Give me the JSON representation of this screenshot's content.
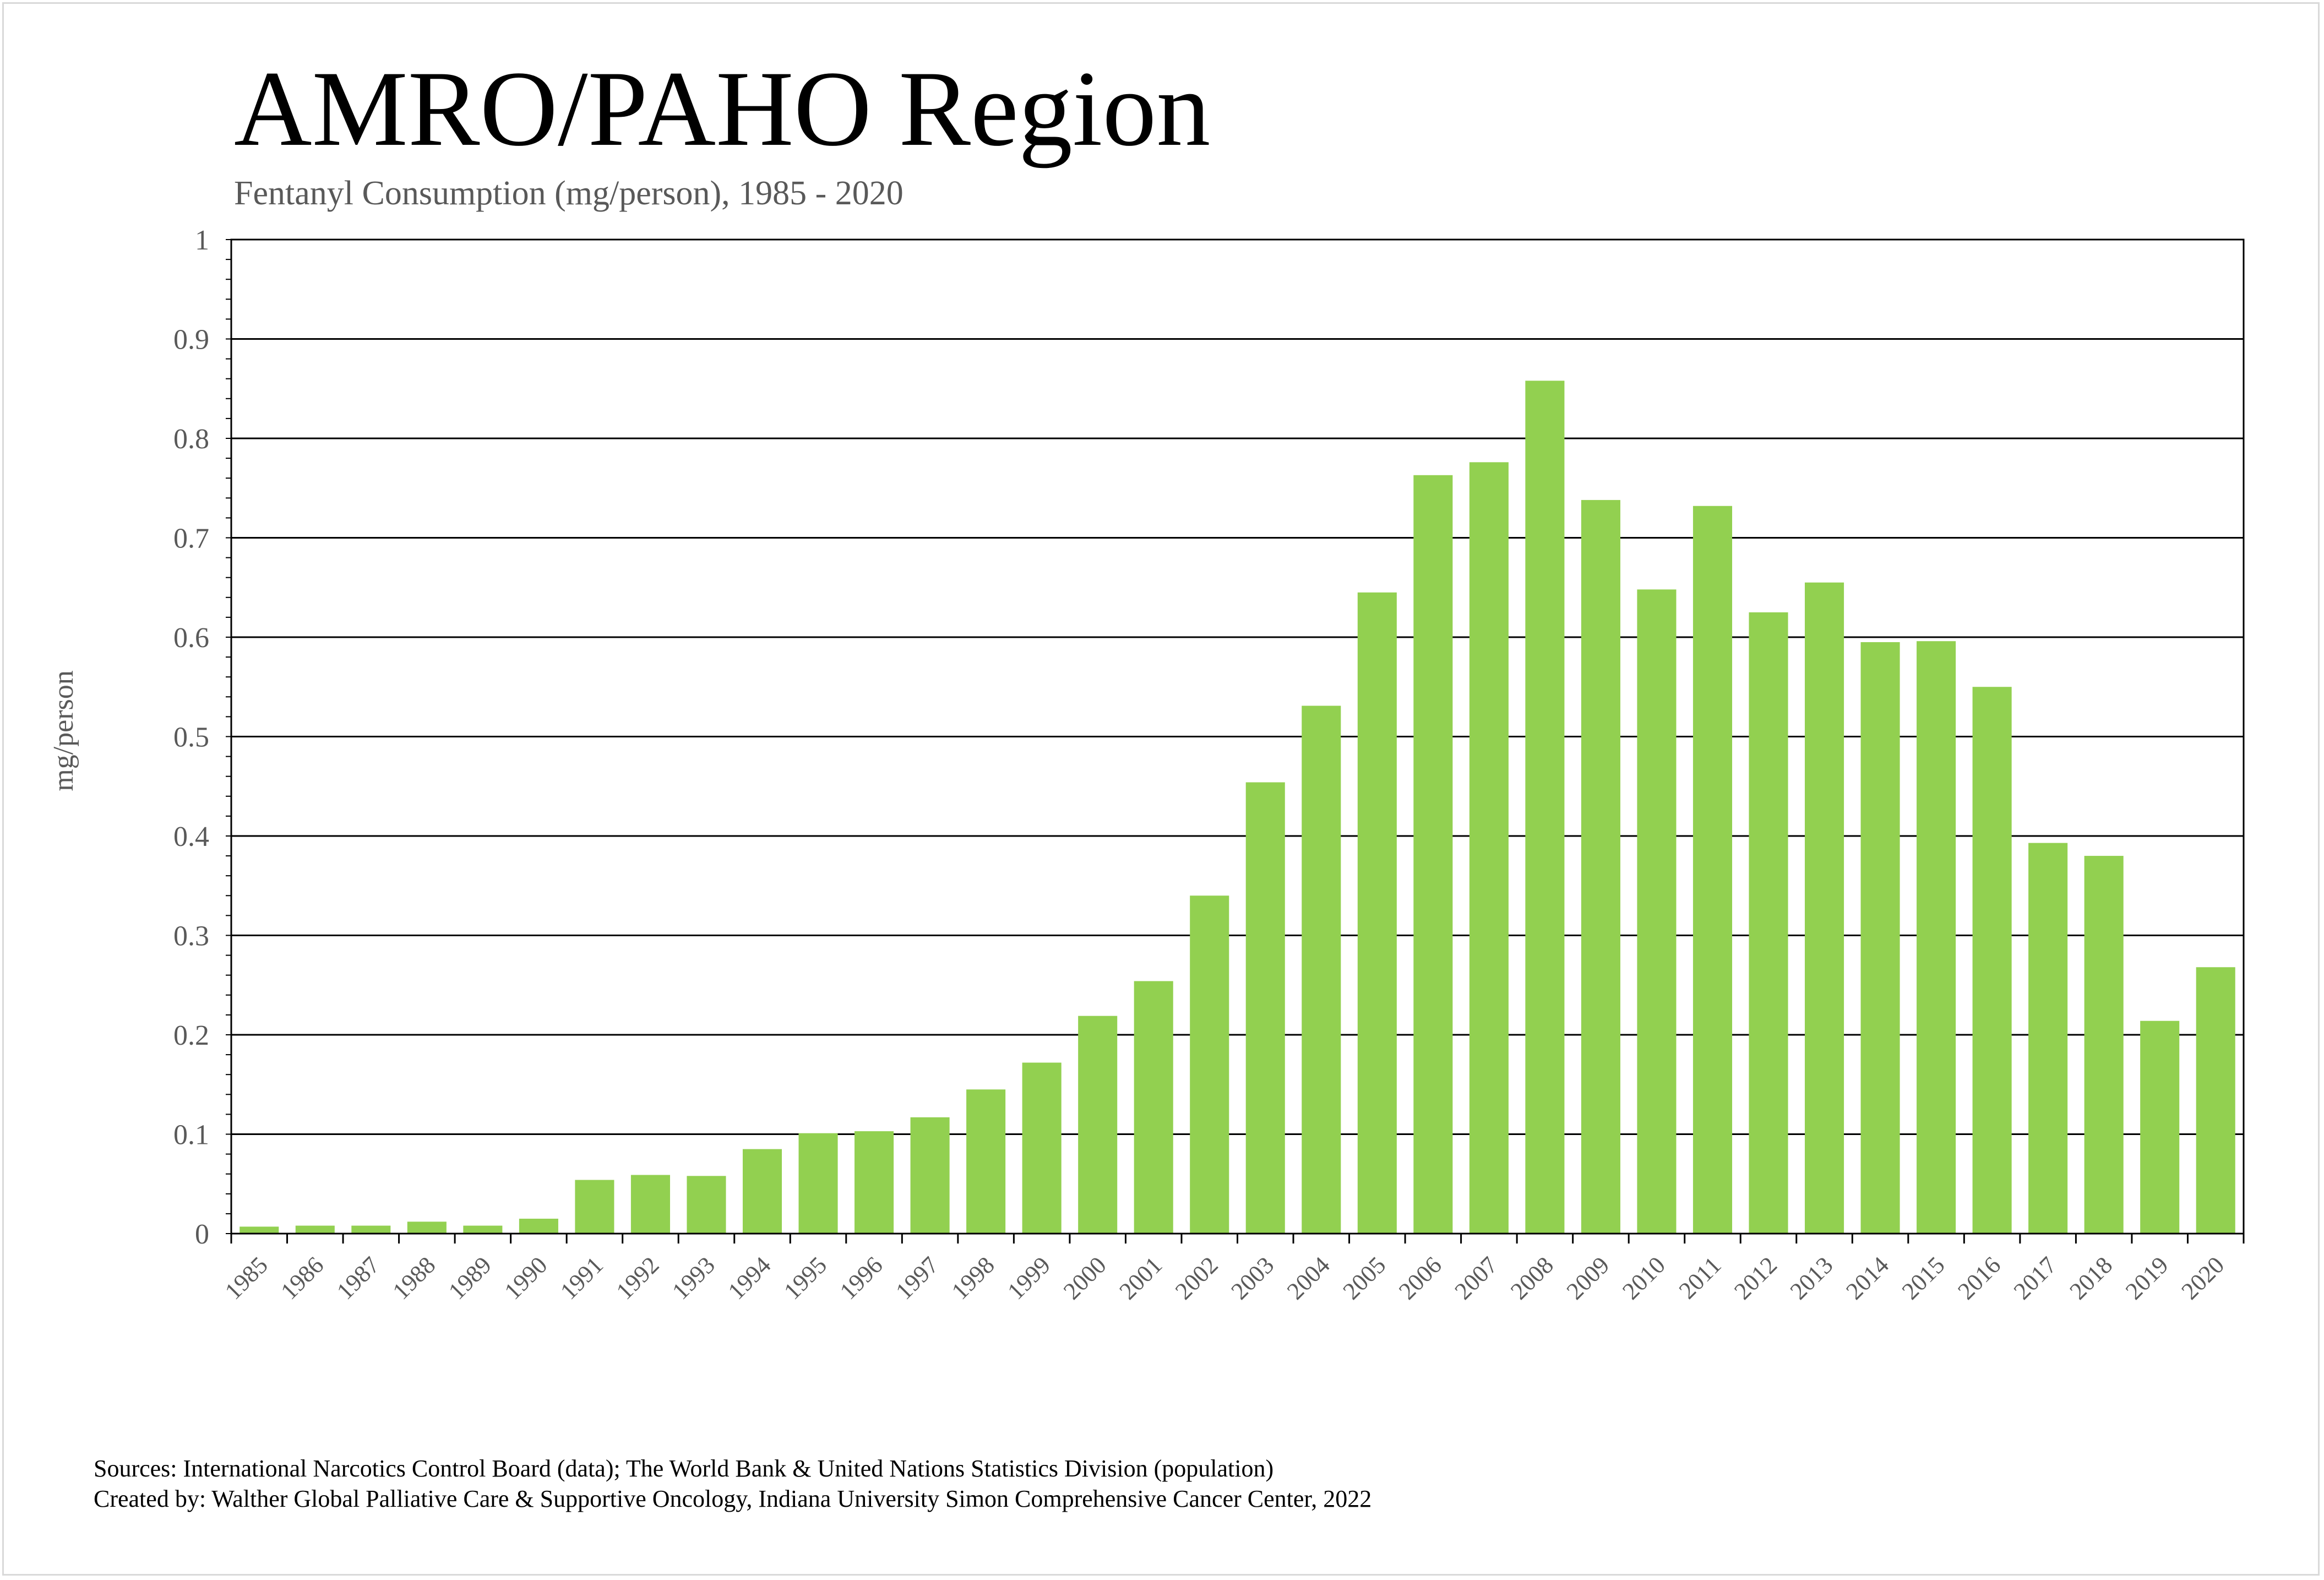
{
  "title": "AMRO/PAHO Region",
  "subtitle": "Fentanyl Consumption (mg/person), 1985 - 2020",
  "footer": {
    "sources": "Sources: International Narcotics Control Board (data); The World Bank & United Nations Statistics Division (population)",
    "created_by": "Created by: Walther Global Palliative Care & Supportive Oncology, Indiana University Simon Comprehensive Cancer Center, 2022"
  },
  "colors": {
    "bar": "#92d050",
    "gridline": "#000000",
    "text": "#595959"
  },
  "chart_data": {
    "type": "bar",
    "title": "AMRO/PAHO Region",
    "subtitle": "Fentanyl Consumption (mg/person), 1985 - 2020",
    "xlabel": "",
    "ylabel": "mg/person",
    "ylim": [
      0,
      1
    ],
    "yticks": [
      "0",
      "0.1",
      "0.2",
      "0.3",
      "0.4",
      "0.5",
      "0.6",
      "0.7",
      "0.8",
      "0.9",
      "1"
    ],
    "grid": true,
    "legend": "none",
    "categories": [
      "1985",
      "1986",
      "1987",
      "1988",
      "1989",
      "1990",
      "1991",
      "1992",
      "1993",
      "1994",
      "1995",
      "1996",
      "1997",
      "1998",
      "1999",
      "2000",
      "2001",
      "2002",
      "2003",
      "2004",
      "2005",
      "2006",
      "2007",
      "2008",
      "2009",
      "2010",
      "2011",
      "2012",
      "2013",
      "2014",
      "2015",
      "2016",
      "2017",
      "2018",
      "2019",
      "2020"
    ],
    "values": [
      0.007,
      0.008,
      0.008,
      0.012,
      0.008,
      0.015,
      0.054,
      0.059,
      0.058,
      0.085,
      0.101,
      0.103,
      0.117,
      0.145,
      0.172,
      0.219,
      0.254,
      0.34,
      0.454,
      0.531,
      0.645,
      0.763,
      0.776,
      0.858,
      0.738,
      0.648,
      0.732,
      0.625,
      0.655,
      0.595,
      0.596,
      0.55,
      0.393,
      0.38,
      0.214,
      0.268
    ]
  }
}
